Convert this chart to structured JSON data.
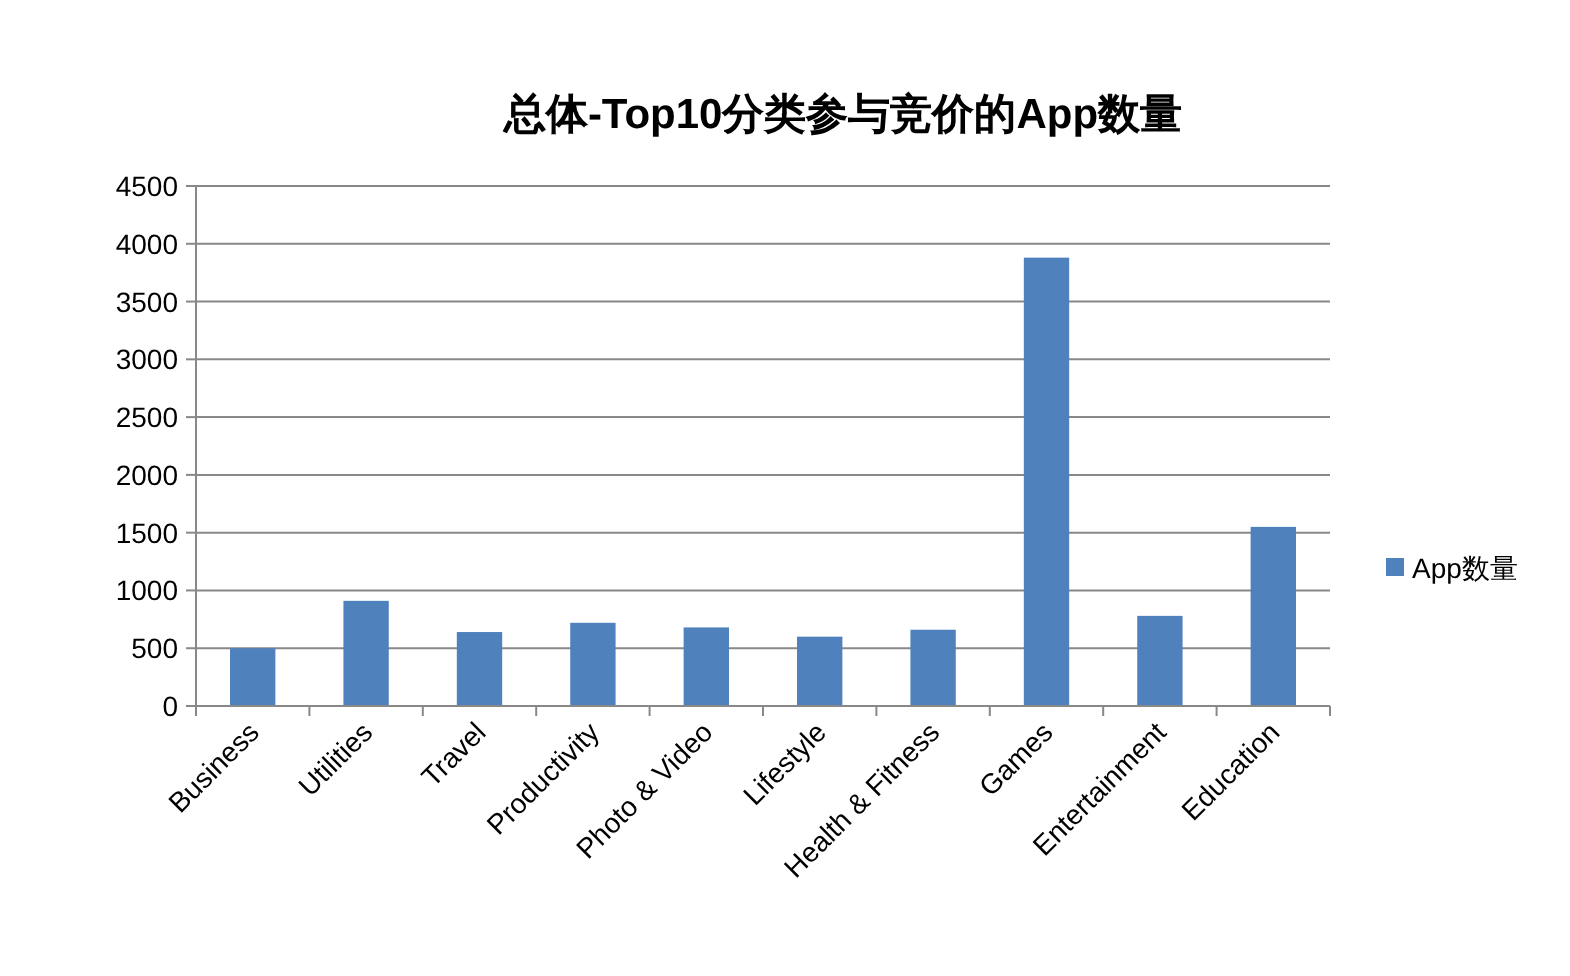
{
  "chart_data": {
    "type": "bar",
    "title": "总体-Top10分类参与竞价的App数量",
    "categories": [
      "Business",
      "Utilities",
      "Travel",
      "Productivity",
      "Photo & Video",
      "Lifestyle",
      "Health & Fitness",
      "Games",
      "Entertainment",
      "Education"
    ],
    "series": [
      {
        "name": "App数量",
        "color": "#4f81bd",
        "values": [
          500,
          910,
          640,
          720,
          680,
          600,
          660,
          3880,
          780,
          1550
        ]
      }
    ],
    "ylim": [
      0,
      4500
    ],
    "yticks": [
      0,
      500,
      1000,
      1500,
      2000,
      2500,
      3000,
      3500,
      4000,
      4500
    ],
    "grid": "y",
    "legend": "right"
  }
}
